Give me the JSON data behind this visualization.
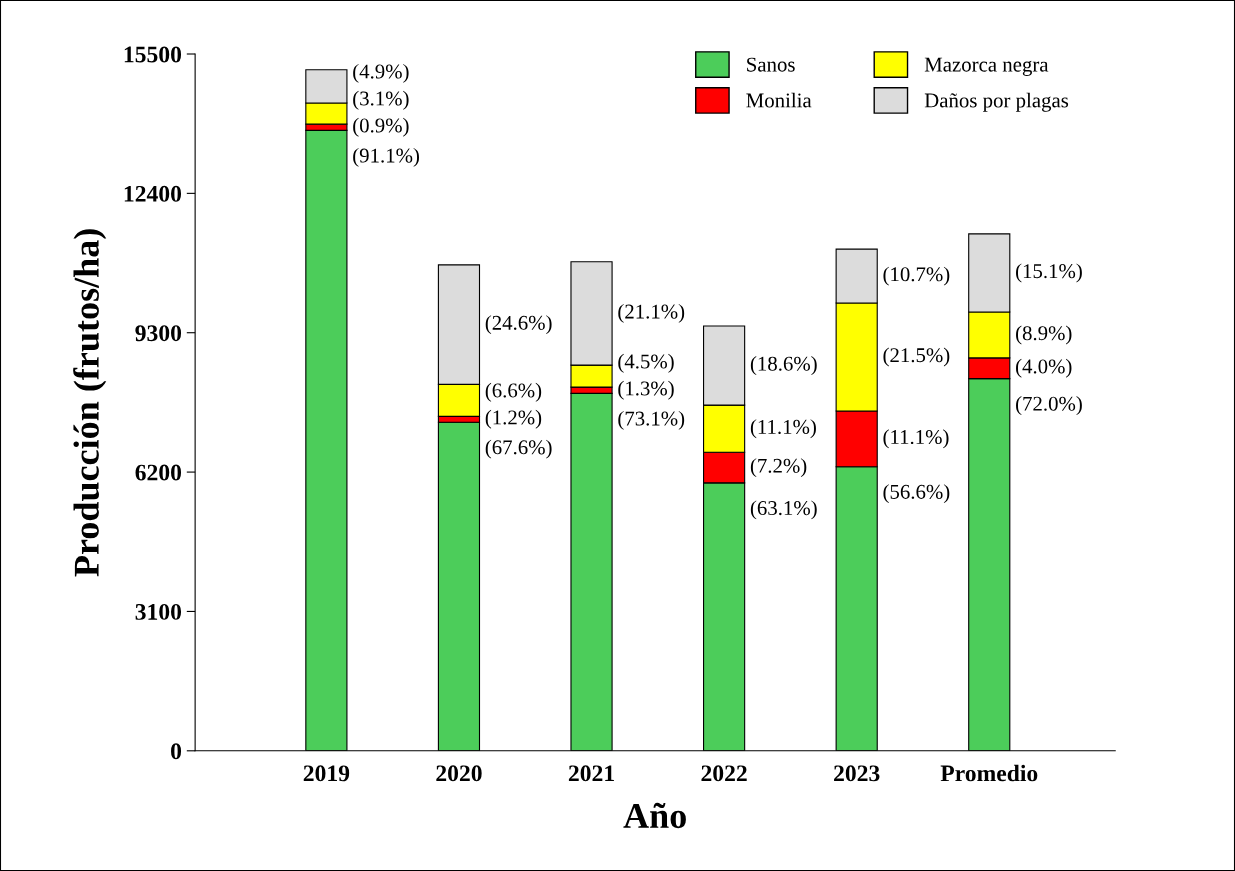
{
  "chart_data": {
    "type": "bar",
    "stacked": true,
    "xlabel": "Año",
    "ylabel": "Producción (frutos/ha)",
    "categories": [
      "2019",
      "2020",
      "2021",
      "2022",
      "2023",
      "Promedio"
    ],
    "ylim": [
      0,
      15500
    ],
    "yticks": [
      0,
      3100,
      6200,
      9300,
      12400,
      15500
    ],
    "grid": false,
    "legend": "top right",
    "series": [
      {
        "name": "Sanos",
        "color": "#4ccd5a",
        "values": [
          13800,
          7310,
          7950,
          5960,
          6320,
          8280
        ]
      },
      {
        "name": "Monilia",
        "color": "#ff0000",
        "values": [
          140,
          130,
          140,
          680,
          1240,
          460
        ]
      },
      {
        "name": "Mazorca negra",
        "color": "#ffff00",
        "values": [
          470,
          710,
          490,
          1050,
          2400,
          1020
        ]
      },
      {
        "name": "Daños por plagas",
        "color": "#dcdcdc",
        "values": [
          740,
          2660,
          2300,
          1760,
          1200,
          1740
        ]
      }
    ],
    "annotations": [
      "(4.9%)",
      "(3.1%)",
      "(0.9%)",
      "(91.1%)",
      "(24.6%)",
      "(6.6%)",
      "(1.2%)",
      "(67.6%)",
      "(21.1%)",
      "(4.5%)",
      "(1.3%)",
      "(73.1%)",
      "(18.6%)",
      "(11.1%)",
      "(7.2%)",
      "(63.1%)",
      "(10.7%)",
      "(21.5%)",
      "(11.1%)",
      "(56.6%)",
      "(15.1%)",
      "(8.9%)",
      "(4.0%)",
      "(72.0%)"
    ]
  }
}
